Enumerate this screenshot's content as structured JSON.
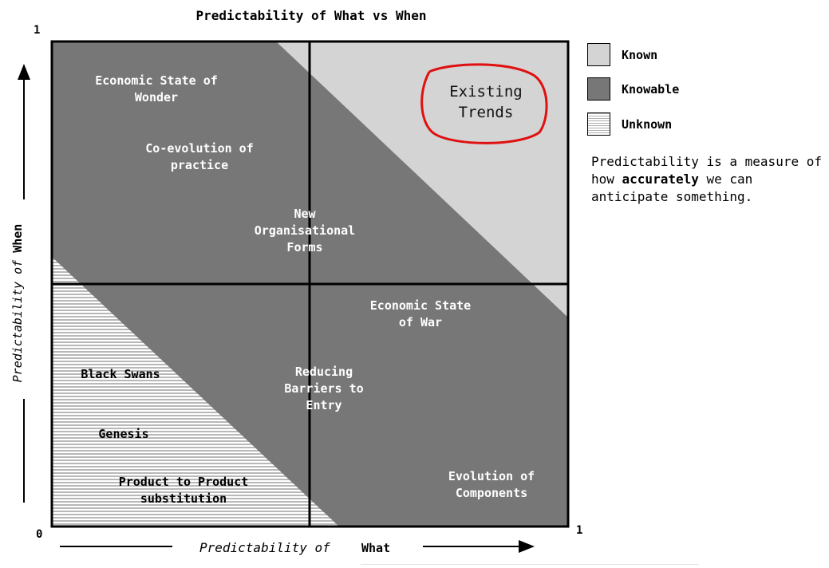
{
  "title": "Predictability of What vs When",
  "axes": {
    "x_label_prefix": "Predictability of",
    "x_label_bold": "What",
    "y_label_prefix": "Predictability of",
    "y_label_bold": "When",
    "origin": "0",
    "x_max": "1",
    "y_max": "1"
  },
  "regions": {
    "economic_wonder": [
      "Economic State of",
      "Wonder"
    ],
    "coevolution": [
      "Co-evolution of",
      "practice"
    ],
    "new_org_forms": [
      "New",
      "Organisational",
      "Forms"
    ],
    "existing_trends": [
      "Existing",
      "Trends"
    ],
    "economic_war": [
      "Economic State",
      "of War"
    ],
    "reducing_barriers": [
      "Reducing",
      "Barriers to",
      "Entry"
    ],
    "black_swans": "Black Swans",
    "genesis": "Genesis",
    "product_substitution": [
      "Product to Product",
      "substitution"
    ],
    "evolution_components": [
      "Evolution of",
      "Components"
    ]
  },
  "legend": [
    {
      "label": "Known",
      "color": "#d4d4d4"
    },
    {
      "label": "Knowable",
      "color": "#777777"
    },
    {
      "label": "Unknown",
      "pattern": "horizontal-lines"
    }
  ],
  "note": {
    "before": "Predictability is a measure of how ",
    "bold": "accurately",
    "after": " we can anticipate something."
  },
  "colors": {
    "known": "#d4d4d4",
    "knowable": "#777777",
    "highlight_circle": "#e01010"
  }
}
